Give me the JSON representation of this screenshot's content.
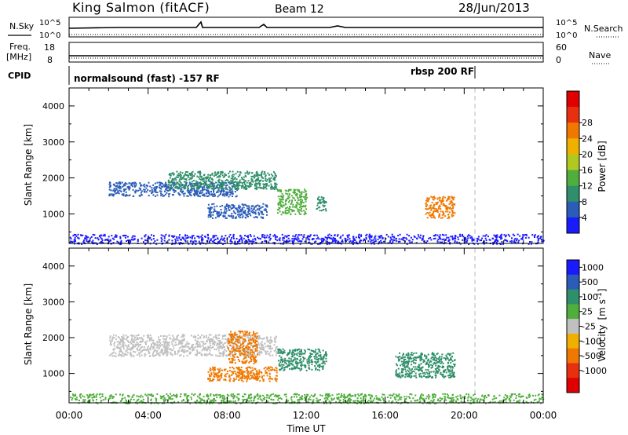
{
  "header": {
    "station": "King Salmon (fitACF)",
    "beam": "Beam 12",
    "date": "28/Jun/2013"
  },
  "strip_labels": {
    "nsky": "N.Sky",
    "nsearch": "N.Search",
    "freq_line1": "Freq.",
    "freq_line2": "[MHz]",
    "nave": "Nave",
    "cpid": "CPID"
  },
  "strip_ticks": {
    "nsky_top": "10^5",
    "nsky_bottom": "10^0",
    "nsearch_top": "10^5",
    "nsearch_bottom": "10^0",
    "freq_top": "18",
    "freq_bottom": "8",
    "nave_top": "60",
    "nave_bottom": "0"
  },
  "cpid_labels": {
    "left": "normalsound (fast) -157 RF",
    "right": "rbsp 200 RF"
  },
  "chart_data": [
    {
      "type": "heatmap",
      "panel": "power",
      "ylabel": "Slant Range [km]",
      "x_ticks": [
        "00:00",
        "04:00",
        "08:00",
        "12:00",
        "16:00",
        "20:00",
        "00:00"
      ],
      "y_ticks": [
        1000,
        2000,
        3000,
        4000
      ],
      "ylim": [
        180,
        4500
      ],
      "xlim_hours": [
        0,
        24
      ],
      "colorbar": {
        "label": "Power [dB]",
        "ticks": [
          "4",
          "8",
          "12",
          "16",
          "20",
          "24",
          "28"
        ],
        "colors": [
          "#1a1aff",
          "#2a5cb8",
          "#2f8f6a",
          "#4fae3c",
          "#b0c820",
          "#f0b000",
          "#f07800",
          "#e83010",
          "#e00000"
        ]
      },
      "regions": [
        {
          "t0": 2.0,
          "t1": 8.5,
          "r0": 1500,
          "r1": 1900,
          "color": "#2a5cb8"
        },
        {
          "t0": 5.0,
          "t1": 10.5,
          "r0": 1700,
          "r1": 2200,
          "color": "#2f8f6a"
        },
        {
          "t0": 7.0,
          "t1": 10.0,
          "r0": 900,
          "r1": 1300,
          "color": "#2a5cb8"
        },
        {
          "t0": 10.5,
          "t1": 12.0,
          "r0": 1000,
          "r1": 1700,
          "color": "#4fae3c"
        },
        {
          "t0": 12.5,
          "t1": 13.0,
          "r0": 1100,
          "r1": 1500,
          "color": "#2f8f6a"
        },
        {
          "t0": 18.0,
          "t1": 19.5,
          "r0": 900,
          "r1": 1500,
          "color": "#f07800"
        },
        {
          "t0": 0.0,
          "t1": 24.0,
          "r0": 180,
          "r1": 450,
          "color": "#1a1aff"
        }
      ]
    },
    {
      "type": "heatmap",
      "panel": "velocity",
      "xlabel": "Time UT",
      "ylabel": "Slant Range [km]",
      "x_ticks": [
        "00:00",
        "04:00",
        "08:00",
        "12:00",
        "16:00",
        "20:00",
        "00:00"
      ],
      "y_ticks": [
        1000,
        2000,
        3000,
        4000
      ],
      "ylim": [
        180,
        4500
      ],
      "xlim_hours": [
        0,
        24
      ],
      "colorbar": {
        "label_main": "Velocity",
        "label_unit": "[m s",
        "label_sup": "-1",
        "label_close": "]",
        "ticks": [
          "1000",
          "500",
          "100",
          "25",
          "-25",
          "-100",
          "-500",
          "-1000"
        ],
        "colors": [
          "#1a1aff",
          "#2a5cb8",
          "#2f8f6a",
          "#4fae3c",
          "#c0c0c0",
          "#f0b000",
          "#f07800",
          "#e83010",
          "#e00000"
        ]
      },
      "regions": [
        {
          "t0": 2.0,
          "t1": 10.5,
          "r0": 1500,
          "r1": 2100,
          "color": "#c0c0c0"
        },
        {
          "t0": 7.0,
          "t1": 10.5,
          "r0": 800,
          "r1": 1200,
          "color": "#f07800"
        },
        {
          "t0": 8.0,
          "t1": 9.5,
          "r0": 1300,
          "r1": 2200,
          "color": "#f07800"
        },
        {
          "t0": 10.5,
          "t1": 13.0,
          "r0": 1100,
          "r1": 1700,
          "color": "#2f8f6a"
        },
        {
          "t0": 16.5,
          "t1": 19.5,
          "r0": 900,
          "r1": 1600,
          "color": "#2f8f6a"
        },
        {
          "t0": 0.0,
          "t1": 24.0,
          "r0": 180,
          "r1": 450,
          "color": "#4fae3c"
        }
      ]
    }
  ]
}
